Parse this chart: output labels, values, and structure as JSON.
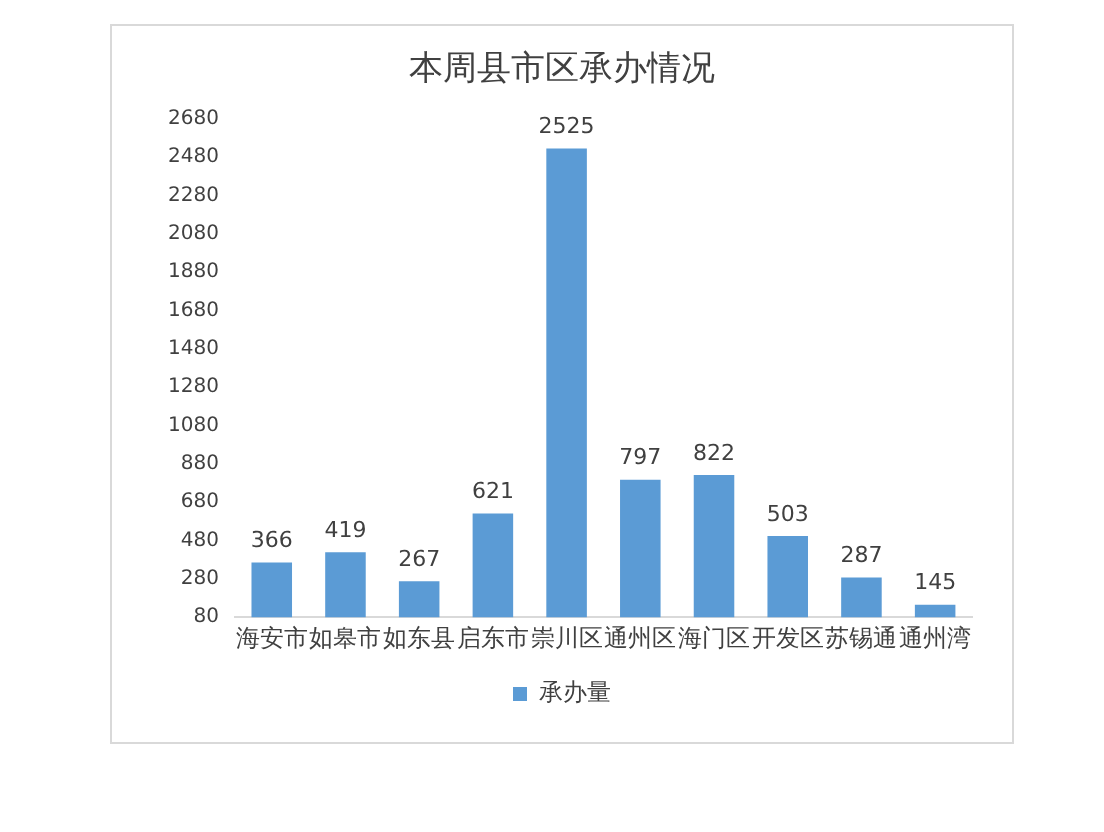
{
  "chart_data": {
    "type": "bar",
    "title": "本周县市区承办情况",
    "categories": [
      "海安市",
      "如皋市",
      "如东县",
      "启东市",
      "崇川区",
      "通州区",
      "海门区",
      "开发区",
      "苏锡通",
      "通州湾"
    ],
    "series": [
      {
        "name": "承办量",
        "color": "#5b9bd5",
        "values": [
          366,
          419,
          267,
          621,
          2525,
          797,
          822,
          503,
          287,
          145
        ]
      }
    ],
    "ylim": [
      80,
      2680
    ],
    "yticks": [
      80,
      280,
      480,
      680,
      880,
      1080,
      1280,
      1480,
      1680,
      1880,
      2080,
      2280,
      2480,
      2680
    ],
    "grid": false,
    "legend": "bottom",
    "data_labels": true
  }
}
